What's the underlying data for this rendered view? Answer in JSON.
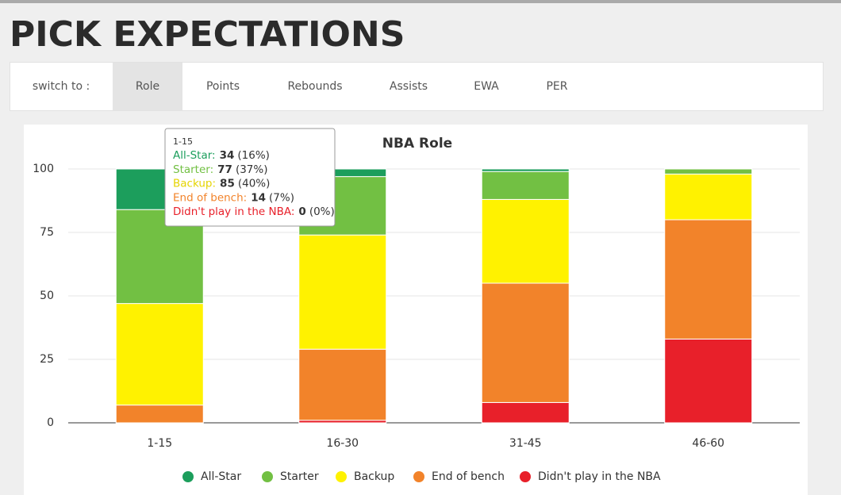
{
  "header": {
    "title": "PICK EXPECTATIONS"
  },
  "nav": {
    "label": "switch to :",
    "tabs": [
      "Role",
      "Points",
      "Rebounds",
      "Assists",
      "EWA",
      "PER"
    ],
    "active": "Role"
  },
  "chart_data": {
    "type": "bar",
    "stacked": true,
    "title": "NBA Role",
    "categories": [
      "1-15",
      "16-30",
      "31-45",
      "46-60"
    ],
    "series": [
      {
        "name": "All-Star",
        "color": "#1c9e5c",
        "values": [
          16,
          3,
          1,
          0
        ]
      },
      {
        "name": "Starter",
        "color": "#72c043",
        "values": [
          37,
          23,
          11,
          2
        ]
      },
      {
        "name": "Backup",
        "color": "#fff200",
        "values": [
          40,
          45,
          33,
          18
        ]
      },
      {
        "name": "End of bench",
        "color": "#f2832a",
        "values": [
          7,
          28,
          47,
          47
        ]
      },
      {
        "name": "Didn't play in the NBA",
        "color": "#e8202a",
        "values": [
          0,
          1,
          8,
          33
        ]
      }
    ],
    "ylim": [
      0,
      100
    ],
    "yticks": [
      0,
      25,
      50,
      75,
      100
    ],
    "grid": true,
    "legend": "bottom",
    "tooltip": {
      "category": "1-15",
      "rows": [
        {
          "label": "All-Star:",
          "count": 34,
          "share": "(16%)"
        },
        {
          "label": "Starter:",
          "count": 77,
          "share": "(37%)"
        },
        {
          "label": "Backup:",
          "count": 85,
          "share": "(40%)"
        },
        {
          "label": "End of bench:",
          "count": 14,
          "share": "(7%)"
        },
        {
          "label": "Didn't play in the NBA:",
          "count": 0,
          "share": "(0%)"
        }
      ]
    }
  }
}
